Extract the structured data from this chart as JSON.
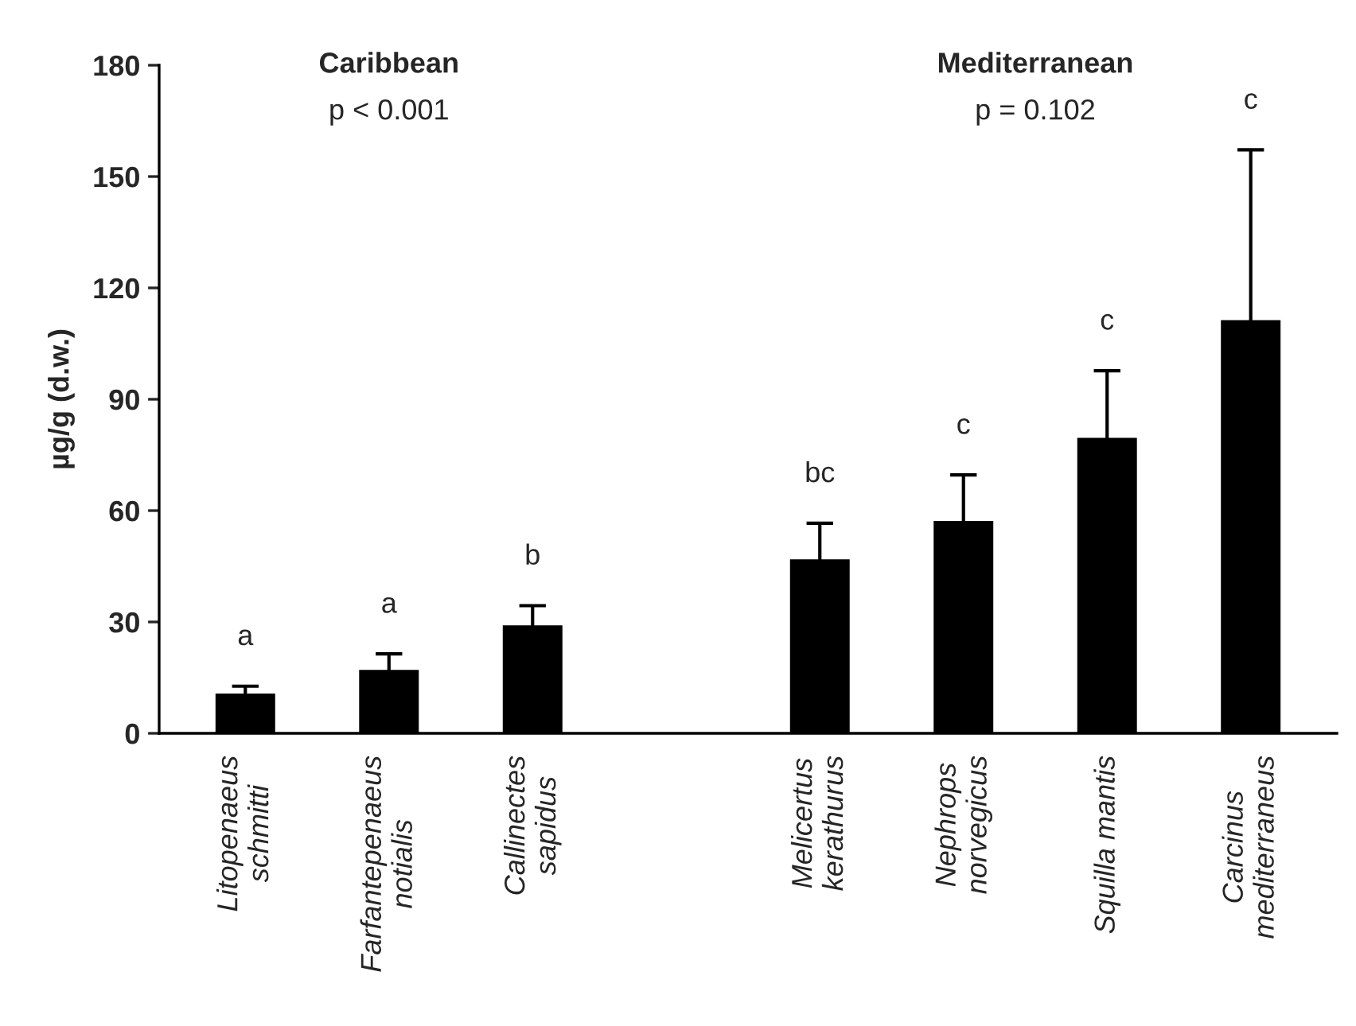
{
  "chart_data": {
    "type": "bar",
    "ylabel": "µg/g (d.w.)",
    "categories": [
      "Litopenaeus\nschmitti",
      "Farfantepenaeus\nnotialis",
      "Callinectes\nsapidus",
      null,
      "Melicertus\nkerathurus",
      "Nephrops\nnorvegicus",
      "Squilla mantis",
      "Carcinus\nmediterraneus"
    ],
    "values": [
      10.4,
      16.8,
      28.8,
      null,
      46.6,
      56.9,
      79.3,
      111
    ],
    "errors": [
      2.3,
      4.6,
      5.6,
      null,
      10,
      12.7,
      18.4,
      46.2
    ],
    "color": "#000000",
    "ylim": [
      0,
      180
    ],
    "yticks": [
      0,
      30,
      60,
      90,
      120,
      150,
      180
    ],
    "grid": false,
    "legend": false,
    "annotations": [
      "Caribbean",
      "p < 0.001",
      "Mediterranean",
      "p = 0.102",
      "a",
      "a",
      "b",
      "bc",
      "c",
      "c",
      "c"
    ]
  }
}
